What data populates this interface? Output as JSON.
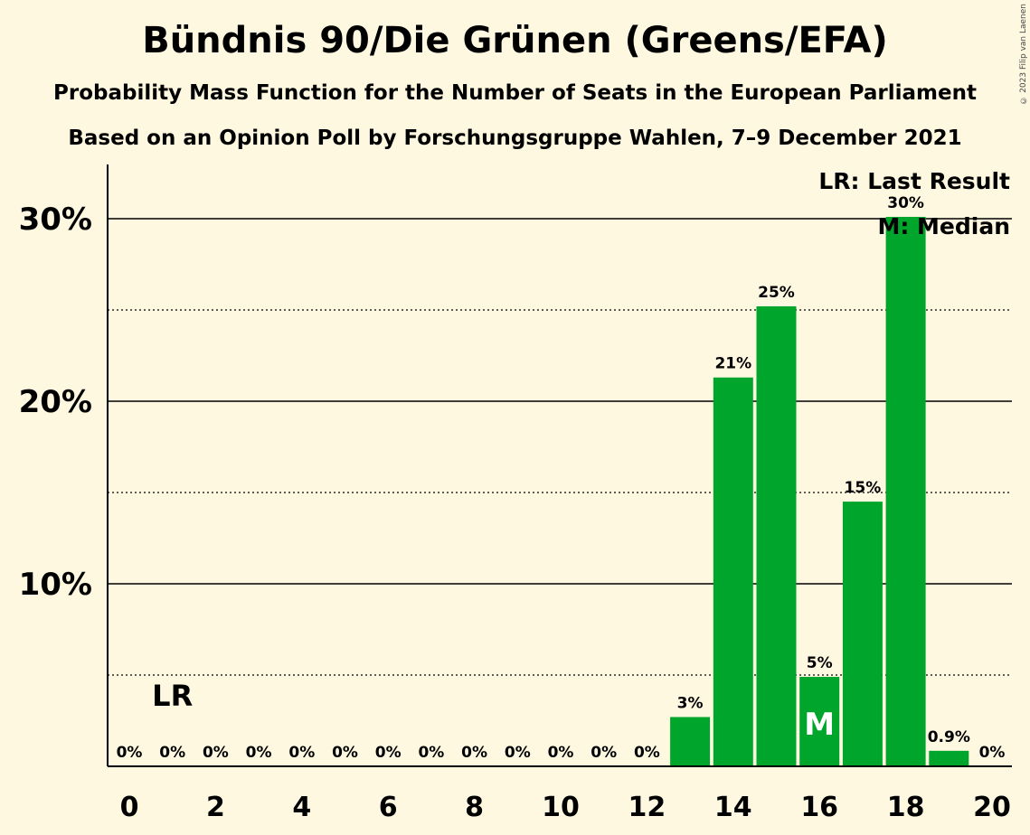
{
  "title": "Bündnis 90/Die Grünen (Greens/EFA)",
  "subtitle1": "Probability Mass Function for the Number of Seats in the European Parliament",
  "subtitle2": "Based on an Opinion Poll by Forschungsgruppe Wahlen, 7–9 December 2021",
  "copyright": "© 2023 Filip van Laenen",
  "legend": {
    "last_result": "LR: Last Result",
    "median": "M: Median"
  },
  "chart_data": {
    "type": "bar",
    "categories": [
      0,
      1,
      2,
      3,
      4,
      5,
      6,
      7,
      8,
      9,
      10,
      11,
      12,
      13,
      14,
      15,
      16,
      17,
      18,
      19,
      20
    ],
    "values": [
      0,
      0,
      0,
      0,
      0,
      0,
      0,
      0,
      0,
      0,
      0,
      0,
      0,
      2.7,
      21.3,
      25.2,
      4.9,
      14.5,
      30.1,
      0.85,
      0
    ],
    "labels": [
      "0%",
      "0%",
      "0%",
      "0%",
      "0%",
      "0%",
      "0%",
      "0%",
      "0%",
      "0%",
      "0%",
      "0%",
      "0%",
      "3%",
      "21%",
      "25%",
      "5%",
      "15%",
      "30%",
      "0.9%",
      "0%"
    ],
    "x_tick_labels": [
      "0",
      "2",
      "4",
      "6",
      "8",
      "10",
      "12",
      "14",
      "16",
      "18",
      "20"
    ],
    "y_tick_labels": [
      "10%",
      "20%",
      "30%"
    ],
    "ylim": [
      0,
      32
    ],
    "last_result_seat": 1,
    "last_result_marker": "LR",
    "median_seat": 16,
    "median_marker": "M",
    "bar_color": "#00a62b",
    "grid": "solid at 10% steps, dotted at 5% steps"
  }
}
